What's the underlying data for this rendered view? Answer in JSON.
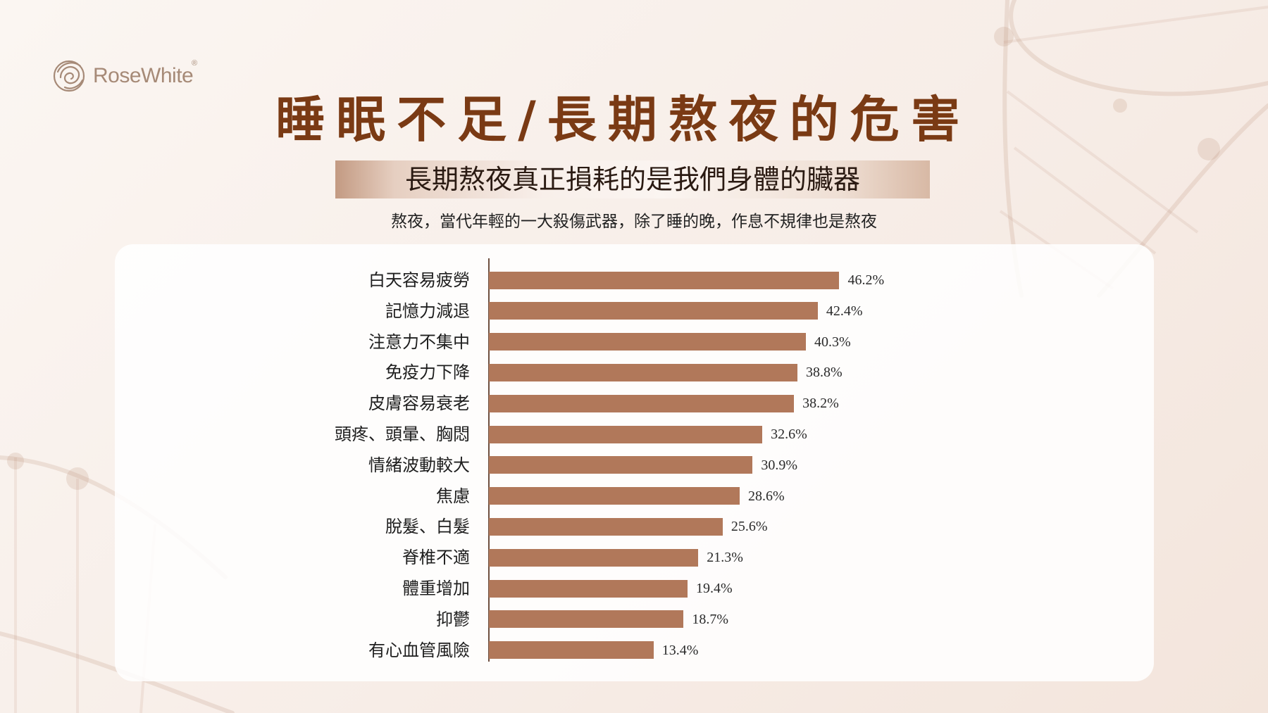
{
  "logo": {
    "icon": "rose-logo-icon",
    "text": "RoseWhite",
    "mark": "®"
  },
  "title": "睡眠不足/長期熬夜的危害",
  "subtitle": "長期熬夜真正損耗的是我們身體的臟器",
  "caption": "熬夜，當代年輕的一大殺傷武器，除了睡的晚，作息不規律也是熬夜",
  "colors": {
    "background": "#f7ede7",
    "title": "#7a3a14",
    "bar": "#b1785a",
    "axis": "#6e5040",
    "logo": "#a68a77"
  },
  "chart_data": {
    "type": "bar",
    "orientation": "horizontal",
    "categories": [
      "白天容易疲勞",
      "記憶力減退",
      "注意力不集中",
      "免疫力下降",
      "皮膚容易衰老",
      "頭疼、頭暈、胸悶",
      "情緒波動較大",
      "焦慮",
      "脫髮、白髮",
      "脊椎不適",
      "體重增加",
      "抑鬱",
      "有心血管風險"
    ],
    "values": [
      46.2,
      42.4,
      40.3,
      38.8,
      38.2,
      32.6,
      30.9,
      28.6,
      25.6,
      21.3,
      19.4,
      18.7,
      13.4
    ],
    "value_labels": [
      "46.2%",
      "42.4%",
      "40.3%",
      "38.8%",
      "38.2%",
      "32.6%",
      "30.9%",
      "28.6%",
      "25.6%",
      "21.3%",
      "19.4%",
      "18.7%",
      "13.4%"
    ],
    "grid": false,
    "legend": "none"
  }
}
